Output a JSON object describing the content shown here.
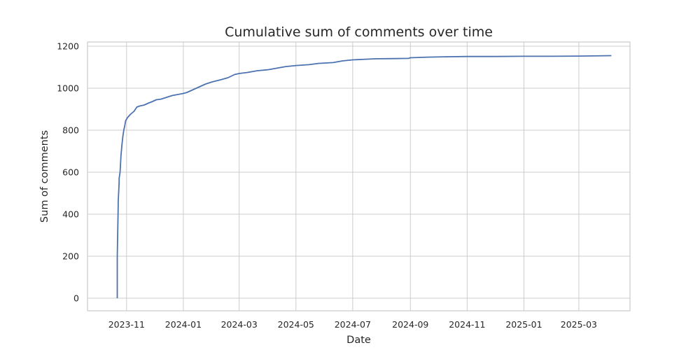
{
  "chart_data": {
    "type": "line",
    "title": "Cumulative sum of comments over time",
    "xlabel": "Date",
    "ylabel": "Sum of comments",
    "x_type": "date",
    "xlim": [
      "2023-09-20",
      "2025-04-25"
    ],
    "ylim": [
      -60,
      1220
    ],
    "grid": true,
    "legend": "none",
    "colors": {
      "line": "#4c72b0",
      "grid": "#cccccc",
      "text": "#262626"
    },
    "x_ticks": [
      {
        "date": "2023-11-01",
        "label": "2023-11"
      },
      {
        "date": "2024-01-01",
        "label": "2024-01"
      },
      {
        "date": "2024-03-01",
        "label": "2024-03"
      },
      {
        "date": "2024-05-01",
        "label": "2024-05"
      },
      {
        "date": "2024-07-01",
        "label": "2024-07"
      },
      {
        "date": "2024-09-01",
        "label": "2024-09"
      },
      {
        "date": "2024-11-01",
        "label": "2024-11"
      },
      {
        "date": "2025-01-01",
        "label": "2025-01"
      },
      {
        "date": "2025-03-01",
        "label": "2025-03"
      }
    ],
    "y_ticks": [
      0,
      200,
      400,
      600,
      800,
      1000,
      1200
    ],
    "series": [
      {
        "x": [
          "2023-10-22",
          "2023-10-22",
          "2023-10-23",
          "2023-10-23",
          "2023-10-24",
          "2023-10-24",
          "2023-10-25",
          "2023-10-26",
          "2023-10-27",
          "2023-10-28",
          "2023-10-29",
          "2023-10-30",
          "2023-10-31",
          "2023-11-02",
          "2023-11-05",
          "2023-11-09",
          "2023-11-12",
          "2023-11-15",
          "2023-11-20",
          "2023-11-25",
          "2023-11-28",
          "2023-12-03",
          "2023-12-08",
          "2023-12-15",
          "2023-12-20",
          "2023-12-26",
          "2024-01-01",
          "2024-01-05",
          "2024-01-10",
          "2024-01-15",
          "2024-01-20",
          "2024-01-25",
          "2024-02-01",
          "2024-02-10",
          "2024-02-18",
          "2024-02-25",
          "2024-03-01",
          "2024-03-10",
          "2024-03-20",
          "2024-04-01",
          "2024-04-10",
          "2024-04-20",
          "2024-05-01",
          "2024-05-15",
          "2024-05-25",
          "2024-06-10",
          "2024-06-20",
          "2024-07-01",
          "2024-07-15",
          "2024-07-25",
          "2024-08-15",
          "2024-08-30",
          "2024-09-01",
          "2024-09-20",
          "2024-10-15",
          "2024-11-01",
          "2024-12-01",
          "2025-01-01",
          "2025-02-01",
          "2025-03-01",
          "2025-04-05"
        ],
        "y": [
          0,
          200,
          440,
          460,
          550,
          570,
          600,
          680,
          730,
          770,
          800,
          820,
          845,
          860,
          875,
          890,
          910,
          915,
          920,
          930,
          935,
          945,
          948,
          958,
          965,
          970,
          975,
          980,
          990,
          1000,
          1010,
          1020,
          1030,
          1040,
          1050,
          1065,
          1070,
          1075,
          1083,
          1088,
          1095,
          1103,
          1108,
          1112,
          1118,
          1122,
          1130,
          1135,
          1138,
          1140,
          1141,
          1142,
          1145,
          1148,
          1150,
          1151,
          1151,
          1152,
          1152,
          1153,
          1155
        ]
      }
    ]
  }
}
